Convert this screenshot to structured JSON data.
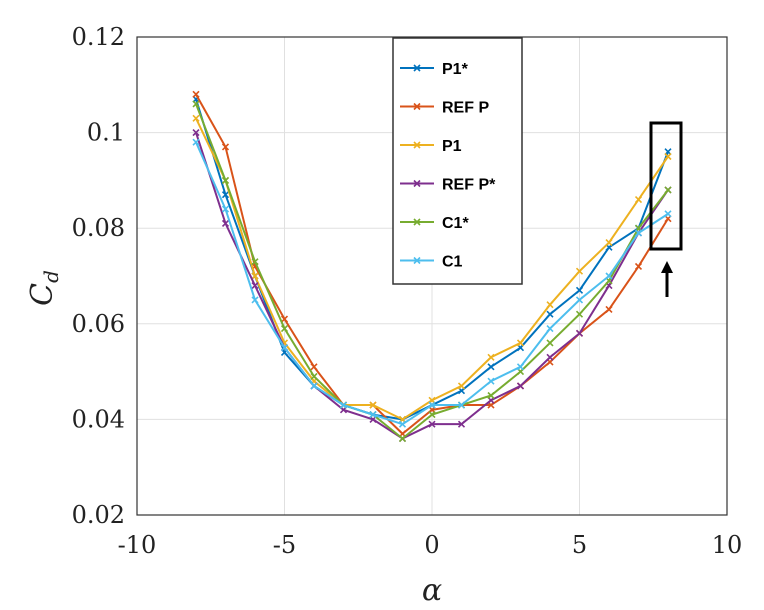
{
  "chart_data": {
    "type": "line",
    "title": "",
    "xlabel": "α",
    "ylabel": "C_d",
    "ylabel_main": "C",
    "ylabel_sub": "d",
    "xlim": [
      -10,
      10
    ],
    "ylim": [
      0.02,
      0.12
    ],
    "xticks": [
      -10,
      -5,
      0,
      5,
      10
    ],
    "xtick_labels": [
      "-10",
      "-5",
      "0",
      "5",
      "10"
    ],
    "yticks": [
      0.02,
      0.04,
      0.06,
      0.08,
      0.1,
      0.12
    ],
    "ytick_labels": [
      "0.02",
      "0.04",
      "0.06",
      "0.08",
      "0.1",
      "0.12"
    ],
    "grid": true,
    "legend_position": "top-center",
    "x": [
      -8,
      -7,
      -6,
      -5,
      -4,
      -3,
      -2,
      -1,
      0,
      1,
      2,
      3,
      4,
      5,
      6,
      7,
      8
    ],
    "series": [
      {
        "name": "P1*",
        "color": "#0072BD",
        "values": [
          0.107,
          0.087,
          0.07,
          0.054,
          0.047,
          0.043,
          0.041,
          0.04,
          0.043,
          0.046,
          0.051,
          0.055,
          0.062,
          0.067,
          0.076,
          0.08,
          0.096
        ]
      },
      {
        "name": "REF P",
        "color": "#D95319",
        "values": [
          0.108,
          0.097,
          0.072,
          0.061,
          0.051,
          0.043,
          0.043,
          0.037,
          0.042,
          0.043,
          0.043,
          0.047,
          0.052,
          0.058,
          0.063,
          0.072,
          0.082
        ]
      },
      {
        "name": "P1",
        "color": "#EDB120",
        "values": [
          0.103,
          0.09,
          0.07,
          0.056,
          0.048,
          0.043,
          0.043,
          0.04,
          0.044,
          0.047,
          0.053,
          0.056,
          0.064,
          0.071,
          0.077,
          0.086,
          0.095
        ]
      },
      {
        "name": "REF P*",
        "color": "#7E2F8E",
        "values": [
          0.1,
          0.081,
          0.068,
          0.055,
          0.047,
          0.042,
          0.04,
          0.036,
          0.039,
          0.039,
          0.044,
          0.047,
          0.053,
          0.058,
          0.068,
          0.079,
          0.088
        ]
      },
      {
        "name": "C1*",
        "color": "#77AC30",
        "values": [
          0.106,
          0.09,
          0.073,
          0.059,
          0.049,
          0.043,
          0.041,
          0.036,
          0.041,
          0.043,
          0.045,
          0.05,
          0.056,
          0.062,
          0.069,
          0.08,
          0.088
        ]
      },
      {
        "name": "C1",
        "color": "#4DBEEE",
        "values": [
          0.098,
          0.084,
          0.065,
          0.055,
          0.047,
          0.043,
          0.041,
          0.039,
          0.043,
          0.043,
          0.048,
          0.051,
          0.059,
          0.065,
          0.07,
          0.079,
          0.083
        ]
      }
    ],
    "annotations": [
      {
        "type": "box",
        "x_range": [
          7.5,
          8.5
        ],
        "y_range": [
          0.076,
          0.102
        ]
      },
      {
        "type": "arrow",
        "at_x": 8.2
      }
    ]
  }
}
